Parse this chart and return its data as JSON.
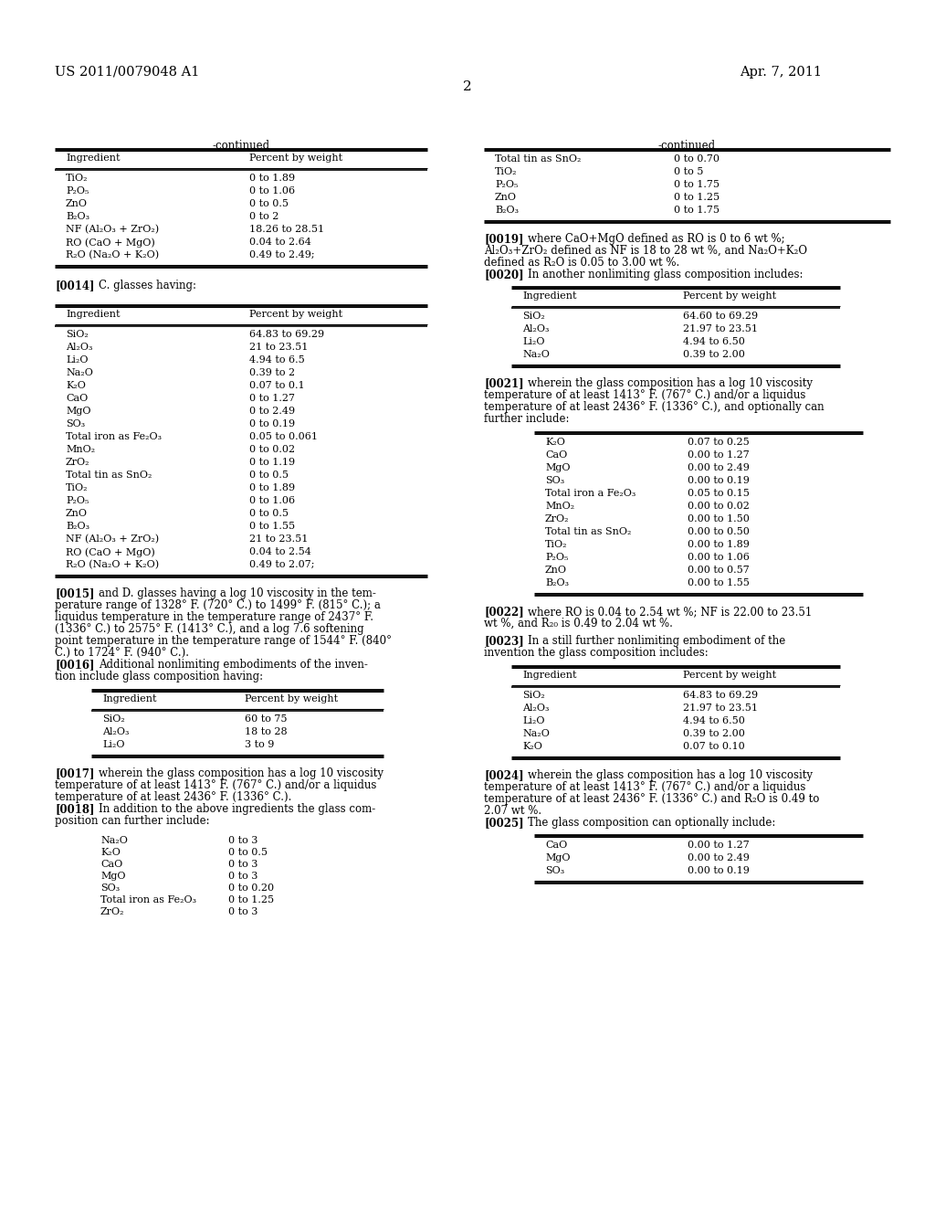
{
  "page_number": "2",
  "patent_number": "US 2011/0079048 A1",
  "patent_date": "Apr. 7, 2011",
  "background_color": "#ffffff",
  "top_left_table": {
    "title": "-continued",
    "header": [
      "Ingredient",
      "Percent by weight"
    ],
    "rows": [
      [
        "TiO₂",
        "0 to 1.89"
      ],
      [
        "P₂O₅",
        "0 to 1.06"
      ],
      [
        "ZnO",
        "0 to 0.5"
      ],
      [
        "B₂O₃",
        "0 to 2"
      ],
      [
        "NF (Al₂O₃ + ZrO₂)",
        "18.26 to 28.51"
      ],
      [
        "RO (CaO + MgO)",
        "0.04 to 2.64"
      ],
      [
        "R₂O (Na₂O + K₂O)",
        "0.49 to 2.49;"
      ]
    ]
  },
  "top_right_table": {
    "title": "-continued",
    "rows": [
      [
        "Total tin as SnO₂",
        "0 to 0.70"
      ],
      [
        "TiO₂",
        "0 to 5"
      ],
      [
        "P₂O₅",
        "0 to 1.75"
      ],
      [
        "ZnO",
        "0 to 1.25"
      ],
      [
        "B₂O₃",
        "0 to 1.75"
      ]
    ]
  },
  "left_table_c": {
    "header": [
      "Ingredient",
      "Percent by weight"
    ],
    "rows": [
      [
        "SiO₂",
        "64.83 to 69.29"
      ],
      [
        "Al₂O₃",
        "21 to 23.51"
      ],
      [
        "Li₂O",
        "4.94 to 6.5"
      ],
      [
        "Na₂O",
        "0.39 to 2"
      ],
      [
        "K₂O",
        "0.07 to 0.1"
      ],
      [
        "CaO",
        "0 to 1.27"
      ],
      [
        "MgO",
        "0 to 2.49"
      ],
      [
        "SO₃",
        "0 to 0.19"
      ],
      [
        "Total iron as Fe₂O₃",
        "0.05 to 0.061"
      ],
      [
        "MnO₂",
        "0 to 0.02"
      ],
      [
        "ZrO₂",
        "0 to 1.19"
      ],
      [
        "Total tin as SnO₂",
        "0 to 0.5"
      ],
      [
        "TiO₂",
        "0 to 1.89"
      ],
      [
        "P₂O₅",
        "0 to 1.06"
      ],
      [
        "ZnO",
        "0 to 0.5"
      ],
      [
        "B₂O₃",
        "0 to 1.55"
      ],
      [
        "NF (Al₂O₃ + ZrO₂)",
        "21 to 23.51"
      ],
      [
        "RO (CaO + MgO)",
        "0.04 to 2.54"
      ],
      [
        "R₂O (Na₂O + K₂O)",
        "0.49 to 2.07;"
      ]
    ]
  },
  "left_table_small": {
    "header": [
      "Ingredient",
      "Percent by weight"
    ],
    "rows": [
      [
        "SiO₂",
        "60 to 75"
      ],
      [
        "Al₂O₃",
        "18 to 28"
      ],
      [
        "Li₂O",
        "3 to 9"
      ]
    ]
  },
  "left_table_additions": {
    "rows": [
      [
        "Na₂O",
        "0 to 3"
      ],
      [
        "K₂O",
        "0 to 0.5"
      ],
      [
        "CaO",
        "0 to 3"
      ],
      [
        "MgO",
        "0 to 3"
      ],
      [
        "SO₃",
        "0 to 0.20"
      ],
      [
        "Total iron as Fe₂O₃",
        "0 to 1.25"
      ],
      [
        "ZrO₂",
        "0 to 3"
      ]
    ]
  },
  "right_table_20": {
    "header": [
      "Ingredient",
      "Percent by weight"
    ],
    "rows": [
      [
        "SiO₂",
        "64.60 to 69.29"
      ],
      [
        "Al₂O₃",
        "21.97 to 23.51"
      ],
      [
        "Li₂O",
        "4.94 to 6.50"
      ],
      [
        "Na₂O",
        "0.39 to 2.00"
      ]
    ]
  },
  "right_table_21": {
    "rows": [
      [
        "K₂O",
        "0.07 to 0.25"
      ],
      [
        "CaO",
        "0.00 to 1.27"
      ],
      [
        "MgO",
        "0.00 to 2.49"
      ],
      [
        "SO₃",
        "0.00 to 0.19"
      ],
      [
        "Total iron a Fe₂O₃",
        "0.05 to 0.15"
      ],
      [
        "MnO₂",
        "0.00 to 0.02"
      ],
      [
        "ZrO₂",
        "0.00 to 1.50"
      ],
      [
        "Total tin as SnO₂",
        "0.00 to 0.50"
      ],
      [
        "TiO₂",
        "0.00 to 1.89"
      ],
      [
        "P₂O₅",
        "0.00 to 1.06"
      ],
      [
        "ZnO",
        "0.00 to 0.57"
      ],
      [
        "B₂O₃",
        "0.00 to 1.55"
      ]
    ]
  },
  "right_table_23": {
    "header": [
      "Ingredient",
      "Percent by weight"
    ],
    "rows": [
      [
        "SiO₂",
        "64.83 to 69.29"
      ],
      [
        "Al₂O₃",
        "21.97 to 23.51"
      ],
      [
        "Li₂O",
        "4.94 to 6.50"
      ],
      [
        "Na₂O",
        "0.39 to 2.00"
      ],
      [
        "K₂O",
        "0.07 to 0.10"
      ]
    ]
  },
  "right_table_25": {
    "rows": [
      [
        "CaO",
        "0.00 to 1.27"
      ],
      [
        "MgO",
        "0.00 to 2.49"
      ],
      [
        "SO₃",
        "0.00 to 0.19"
      ]
    ]
  }
}
